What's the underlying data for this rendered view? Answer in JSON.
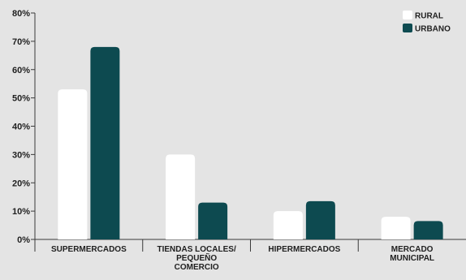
{
  "chart_data": {
    "type": "bar",
    "categories": [
      [
        "SUPERMERCADOS"
      ],
      [
        "TIENDAS LOCALES/",
        "PEQUEÑO",
        "COMERCIO"
      ],
      [
        "HIPERMERCADOS"
      ],
      [
        "MERCADO",
        "MUNICIPAL"
      ]
    ],
    "series": [
      {
        "name": "RURAL",
        "color": "#ffffff",
        "values": [
          53,
          30,
          10,
          8
        ]
      },
      {
        "name": "URBANO",
        "color": "#0d4a50",
        "values": [
          68,
          13,
          13.5,
          6.5
        ]
      }
    ],
    "ylim": [
      0,
      80
    ],
    "yticks": [
      "0%",
      "10%",
      "20%",
      "30%",
      "40%",
      "50%",
      "60%",
      "70%",
      "80%"
    ],
    "grid": false,
    "legend_position": "top-right"
  }
}
